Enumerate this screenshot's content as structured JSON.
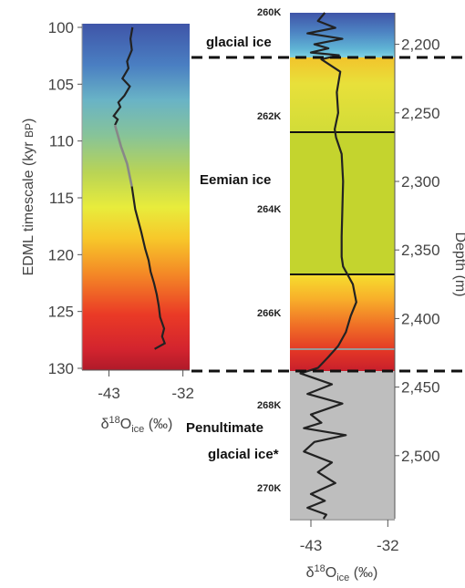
{
  "chart_data": [
    {
      "type": "line",
      "ylabel": "EDML timescale (kyr BP)",
      "y_ticks": [
        100,
        105,
        110,
        115,
        120,
        125,
        130
      ],
      "x_ticks": [
        -43,
        -32
      ],
      "xlabel": "δ18Oice (‰)",
      "ylim": [
        130,
        100
      ],
      "xlim": [
        -47,
        -31
      ],
      "series": [
        {
          "x": [
            -39.5,
            -39.8,
            -39.6,
            -40.3,
            -40.1,
            -41.0,
            -39.9,
            -40.7,
            -41.6,
            -41.3,
            -42.3,
            -41.7,
            -42.1,
            -41.2,
            -40.3,
            -39.6,
            -39.1,
            -38.2,
            -37.6,
            -37.1,
            -36.8,
            -36.3,
            -35.9,
            -35.6,
            -35.4,
            -34.8,
            -35.1,
            -34.7,
            -36.2
          ],
          "y": [
            100.0,
            101.0,
            102.0,
            103.0,
            103.6,
            104.5,
            105.2,
            106.0,
            106.6,
            107.0,
            107.8,
            108.1,
            108.6,
            110.5,
            112.0,
            114.0,
            116.0,
            118.0,
            119.5,
            120.5,
            121.5,
            122.5,
            123.5,
            124.5,
            125.5,
            126.5,
            127.2,
            127.8,
            128.3
          ]
        }
      ]
    },
    {
      "type": "line",
      "ylabel": "Depth (m)",
      "y_ticks": [
        2200,
        2250,
        2300,
        2350,
        2400,
        2450,
        2500
      ],
      "x_ticks": [
        -43,
        -32
      ],
      "xlabel": "δ18Oice (‰)",
      "ylim": [
        2546,
        2177
      ],
      "xlim": [
        -46,
        -31
      ],
      "series": [
        {
          "x": [
            -41.0,
            -42.0,
            -39.5,
            -43.5,
            -38.5,
            -42.5,
            -40.5,
            -43.0,
            -39.0,
            -41.5,
            -38.8,
            -39.3,
            -39.1,
            -39.6,
            -39.4,
            -38.6,
            -38.4,
            -38.5,
            -38.6,
            -38.6,
            -38.4,
            -37.0,
            -36.5,
            -37.3,
            -38.0,
            -39.1,
            -40.5,
            -42.0,
            -44.5,
            -40.0,
            -43.5,
            -38.5,
            -43.0,
            -41.5,
            -44.0,
            -38.0,
            -42.5,
            -44.0,
            -40.0,
            -42.0,
            -39.5,
            -43.0,
            -41.0,
            -43.5,
            -40.8,
            -41.2
          ],
          "y": [
            2177,
            2183,
            2188,
            2192,
            2196,
            2200,
            2203,
            2206,
            2208,
            2211,
            2220,
            2235,
            2250,
            2262,
            2268,
            2280,
            2300,
            2320,
            2340,
            2355,
            2362,
            2375,
            2388,
            2398,
            2410,
            2420,
            2428,
            2436,
            2440,
            2448,
            2455,
            2462,
            2470,
            2476,
            2480,
            2485,
            2490,
            2497,
            2505,
            2512,
            2520,
            2528,
            2533,
            2538,
            2543,
            2546
          ]
        }
      ]
    }
  ],
  "sample_labels": [
    "260K",
    "262K",
    "264K",
    "266K",
    "268K",
    "270K"
  ],
  "annotations": {
    "glacial_ice": "glacial ice",
    "eemian_ice": "Eemian ice",
    "penultimate_line1": "Penultimate",
    "penultimate_line2": "glacial ice*"
  },
  "gradient_colors": [
    "#3f55a8",
    "#e8ec3c",
    "#d3242e"
  ],
  "eemian_panel_color": "#c4d42e",
  "glacial_panel_color": "#bebebe",
  "grey_trace_color": "#888888",
  "trace_color": "#222222"
}
